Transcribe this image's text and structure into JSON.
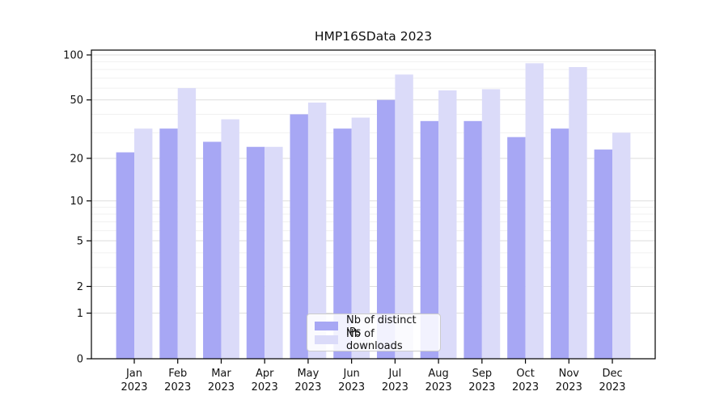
{
  "chart_data": {
    "type": "bar",
    "title": "HMP16SData 2023",
    "categories": [
      "Jan",
      "Feb",
      "Mar",
      "Apr",
      "May",
      "Jun",
      "Jul",
      "Aug",
      "Sep",
      "Oct",
      "Nov",
      "Dec"
    ],
    "category_sublabel": "2023",
    "series": [
      {
        "name": "Nb of distinct IPs",
        "color": "#a7a7f4",
        "values": [
          22,
          32,
          26,
          24,
          40,
          32,
          50,
          36,
          36,
          28,
          32,
          23
        ]
      },
      {
        "name": "Nb of downloads",
        "color": "#dbdbf9",
        "values": [
          32,
          60,
          37,
          24,
          48,
          38,
          74,
          58,
          59,
          88,
          83,
          30
        ]
      }
    ],
    "xlabel": "",
    "ylabel": "",
    "y_axis": {
      "scale": "log1p",
      "ticks": [
        0,
        1,
        2,
        5,
        10,
        20,
        50,
        100
      ],
      "tick_labels": [
        "0",
        "1",
        "2",
        "5",
        "10",
        "20",
        "50",
        "100"
      ],
      "minor_gridlines": [
        3,
        4,
        6,
        7,
        8,
        9,
        30,
        40,
        60,
        70,
        80,
        90
      ],
      "range": [
        0,
        107
      ]
    },
    "grid": true,
    "legend_position": "bottom-center",
    "colors": {
      "background": "#ffffff",
      "axis": "#000000"
    }
  }
}
